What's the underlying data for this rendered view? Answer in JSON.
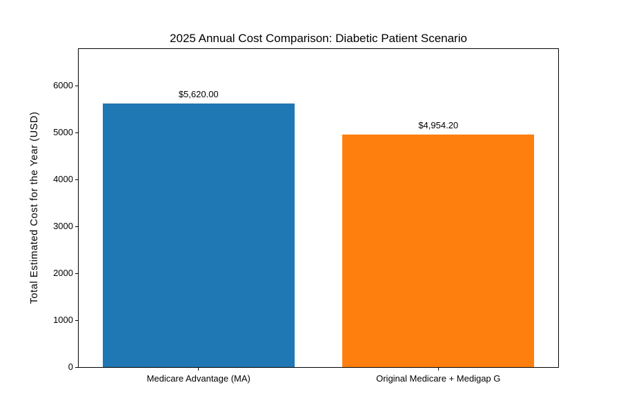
{
  "chart_data": {
    "type": "bar",
    "title": "2025 Annual Cost Comparison: Diabetic Patient Scenario",
    "xlabel": "",
    "ylabel": "Total Estimated Cost for the Year (USD)",
    "categories": [
      "Medicare Advantage (MA)",
      "Original Medicare + Medigap G"
    ],
    "values": [
      5620.0,
      4954.2
    ],
    "value_labels": [
      "$5,620.00",
      "$4,954.20"
    ],
    "bar_colors": [
      "#1f77b4",
      "#ff7f0e"
    ],
    "ylim": [
      0,
      6780
    ],
    "yticks": [
      0,
      1000,
      2000,
      3000,
      4000,
      5000,
      6000
    ],
    "ytick_labels": [
      "0",
      "1000",
      "2000",
      "3000",
      "4000",
      "5000",
      "6000"
    ],
    "bar_width_fraction": 0.8,
    "grid": false,
    "legend": "none",
    "background_color": "#ffffff",
    "spine_color": "#000000"
  }
}
